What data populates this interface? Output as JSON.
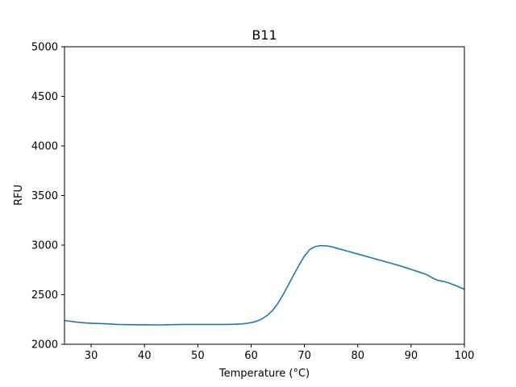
{
  "chart_data": {
    "type": "line",
    "title": "B11",
    "xlabel": "Temperature (°C)",
    "ylabel": "RFU",
    "xlim": [
      25,
      100
    ],
    "ylim": [
      2000,
      5000
    ],
    "xticks": [
      30,
      40,
      50,
      60,
      70,
      80,
      90,
      100
    ],
    "yticks": [
      2000,
      2500,
      3000,
      3500,
      4000,
      4500,
      5000
    ],
    "grid": false,
    "series": [
      {
        "color": "#1f77b4",
        "x": [
          25,
          27,
          29,
          31,
          33,
          35,
          37,
          39,
          41,
          43,
          45,
          47,
          49,
          51,
          53,
          55,
          57,
          58,
          59,
          60,
          61,
          62,
          63,
          64,
          65,
          66,
          67,
          68,
          69,
          70,
          71,
          72,
          73,
          74,
          75,
          76,
          77,
          78,
          80,
          82,
          84,
          86,
          88,
          90,
          92,
          93,
          94,
          95,
          96,
          97,
          98,
          100
        ],
        "y": [
          2240,
          2225,
          2215,
          2210,
          2206,
          2200,
          2198,
          2197,
          2196,
          2195,
          2198,
          2200,
          2200,
          2200,
          2200,
          2200,
          2202,
          2205,
          2210,
          2218,
          2232,
          2255,
          2290,
          2340,
          2410,
          2500,
          2600,
          2700,
          2800,
          2890,
          2955,
          2985,
          2995,
          2993,
          2985,
          2970,
          2955,
          2940,
          2910,
          2880,
          2850,
          2820,
          2790,
          2755,
          2720,
          2700,
          2670,
          2645,
          2635,
          2620,
          2600,
          2555
        ]
      }
    ]
  }
}
